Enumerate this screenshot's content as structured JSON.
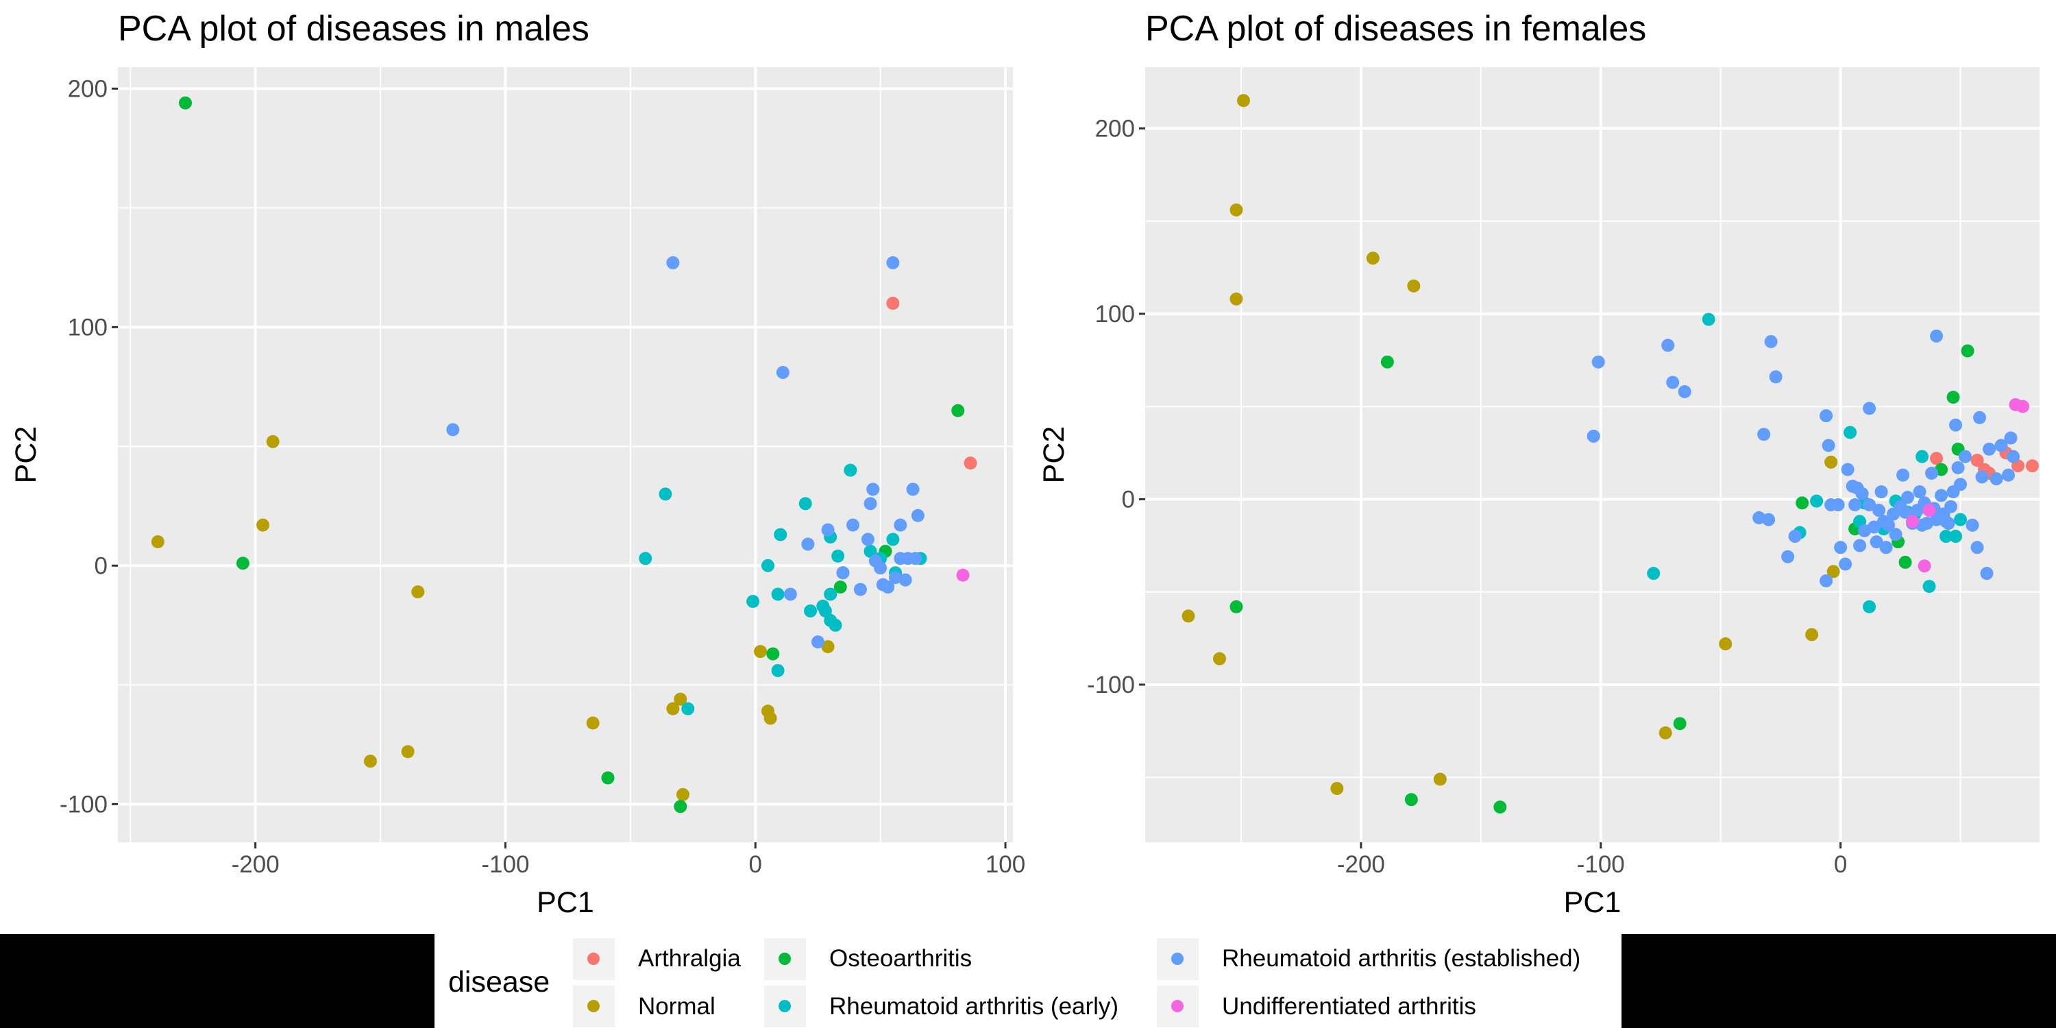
{
  "legend": {
    "title": "disease",
    "entries": [
      {
        "label": "Arthralgia",
        "color": "#F8766D"
      },
      {
        "label": "Normal",
        "color": "#B79F00"
      },
      {
        "label": "Osteoarthritis",
        "color": "#00BA38"
      },
      {
        "label": "Rheumatoid arthritis (early)",
        "color": "#00BFC4"
      },
      {
        "label": "Rheumatoid arthritis (established)",
        "color": "#619CFF"
      },
      {
        "label": "Undifferentiated arthritis",
        "color": "#F564E3"
      }
    ]
  },
  "chart_data": [
    {
      "type": "scatter",
      "title": "PCA plot of diseases in males",
      "xlabel": "PC1",
      "ylabel": "PC2",
      "xlim": [
        -255,
        103
      ],
      "ylim": [
        -116,
        209
      ],
      "xticks": [
        -200,
        -100,
        0,
        100
      ],
      "yticks": [
        -100,
        0,
        100,
        200
      ],
      "grid": true,
      "series": [
        {
          "name": "Arthralgia",
          "points": [
            [
              55,
              110
            ],
            [
              86,
              43
            ]
          ]
        },
        {
          "name": "Normal",
          "points": [
            [
              -239,
              10
            ],
            [
              -193,
              52
            ],
            [
              -197,
              17
            ],
            [
              -135,
              -11
            ],
            [
              -154,
              -82
            ],
            [
              -139,
              -78
            ],
            [
              -65,
              -66
            ],
            [
              -33,
              -60
            ],
            [
              -30,
              -56
            ],
            [
              -29,
              -96
            ],
            [
              2,
              -36
            ],
            [
              5,
              -61
            ],
            [
              6,
              -64
            ],
            [
              29,
              -34
            ]
          ]
        },
        {
          "name": "Osteoarthritis",
          "points": [
            [
              -228,
              194
            ],
            [
              -205,
              1
            ],
            [
              -59,
              -89
            ],
            [
              -30,
              -101
            ],
            [
              7,
              -37
            ],
            [
              34,
              -9
            ],
            [
              52,
              6
            ],
            [
              81,
              65
            ]
          ]
        },
        {
          "name": "Rheumatoid arthritis (early)",
          "points": [
            [
              -36,
              30
            ],
            [
              -44,
              3
            ],
            [
              -27,
              -60
            ],
            [
              -1,
              -15
            ],
            [
              5,
              0
            ],
            [
              9,
              -12
            ],
            [
              9,
              -44
            ],
            [
              10,
              13
            ],
            [
              20,
              26
            ],
            [
              22,
              -19
            ],
            [
              27,
              -17
            ],
            [
              28,
              -19
            ],
            [
              30,
              12
            ],
            [
              30,
              -12
            ],
            [
              30,
              -23
            ],
            [
              32,
              -25
            ],
            [
              33,
              4
            ],
            [
              35,
              -3
            ],
            [
              38,
              40
            ],
            [
              46,
              6
            ],
            [
              50,
              3
            ],
            [
              55,
              11
            ],
            [
              56,
              -3
            ],
            [
              66,
              3
            ]
          ]
        },
        {
          "name": "Rheumatoid arthritis (established)",
          "points": [
            [
              -121,
              57
            ],
            [
              -33,
              127
            ],
            [
              11,
              81
            ],
            [
              55,
              127
            ],
            [
              14,
              -12
            ],
            [
              21,
              9
            ],
            [
              25,
              -32
            ],
            [
              29,
              15
            ],
            [
              35,
              -3
            ],
            [
              39,
              17
            ],
            [
              42,
              -10
            ],
            [
              45,
              11
            ],
            [
              46,
              26
            ],
            [
              47,
              32
            ],
            [
              48,
              2
            ],
            [
              50,
              -1
            ],
            [
              51,
              -8
            ],
            [
              53,
              -9
            ],
            [
              56,
              -5
            ],
            [
              58,
              17
            ],
            [
              58,
              3
            ],
            [
              60,
              -6
            ],
            [
              61,
              3
            ],
            [
              63,
              32
            ],
            [
              64,
              3
            ],
            [
              65,
              21
            ]
          ]
        },
        {
          "name": "Undifferentiated arthritis",
          "points": [
            [
              83,
              -4
            ]
          ]
        }
      ]
    },
    {
      "type": "scatter",
      "title": "PCA plot of diseases in females",
      "xlabel": "PC1",
      "ylabel": "PC2",
      "xlim": [
        -290,
        83
      ],
      "ylim": [
        -185,
        233
      ],
      "xticks": [
        -200,
        -100,
        0
      ],
      "yticks": [
        -100,
        0,
        100,
        200
      ],
      "grid": true,
      "series": [
        {
          "name": "Arthralgia",
          "points": [
            [
              40,
              22
            ],
            [
              57,
              21
            ],
            [
              62,
              14
            ],
            [
              69,
              25
            ],
            [
              74,
              18
            ],
            [
              80,
              18
            ],
            [
              60,
              16
            ]
          ]
        },
        {
          "name": "Normal",
          "points": [
            [
              -249,
              215
            ],
            [
              -252,
              156
            ],
            [
              -252,
              108
            ],
            [
              -195,
              130
            ],
            [
              -178,
              115
            ],
            [
              -272,
              -63
            ],
            [
              -259,
              -86
            ],
            [
              -210,
              -156
            ],
            [
              -167,
              -151
            ],
            [
              -73,
              -126
            ],
            [
              -48,
              -78
            ],
            [
              -12,
              -73
            ],
            [
              -3,
              -39
            ],
            [
              -4,
              20
            ]
          ]
        },
        {
          "name": "Osteoarthritis",
          "points": [
            [
              -189,
              74
            ],
            [
              -252,
              -58
            ],
            [
              -179,
              -162
            ],
            [
              -67,
              -121
            ],
            [
              -142,
              -166
            ],
            [
              53,
              80
            ],
            [
              47,
              55
            ],
            [
              49,
              27
            ],
            [
              42,
              16
            ],
            [
              27,
              -34
            ],
            [
              24,
              -23
            ],
            [
              -16,
              -2
            ],
            [
              6,
              -16
            ]
          ]
        },
        {
          "name": "Rheumatoid arthritis (early)",
          "points": [
            [
              -55,
              97
            ],
            [
              -78,
              -40
            ],
            [
              -17,
              -18
            ],
            [
              -10,
              -1
            ],
            [
              4,
              36
            ],
            [
              8,
              -12
            ],
            [
              10,
              -2
            ],
            [
              12,
              -58
            ],
            [
              18,
              -16
            ],
            [
              23,
              -1
            ],
            [
              28,
              -7
            ],
            [
              31,
              -8
            ],
            [
              34,
              23
            ],
            [
              37,
              -47
            ],
            [
              40,
              -11
            ],
            [
              44,
              -20
            ],
            [
              48,
              -20
            ],
            [
              50,
              -11
            ]
          ]
        },
        {
          "name": "Rheumatoid arthritis (established)",
          "points": [
            [
              -103,
              34
            ],
            [
              -101,
              74
            ],
            [
              -72,
              83
            ],
            [
              -70,
              63
            ],
            [
              -65,
              58
            ],
            [
              -34,
              -10
            ],
            [
              -30,
              -11
            ],
            [
              -27,
              66
            ],
            [
              -29,
              85
            ],
            [
              -32,
              35
            ],
            [
              -22,
              -31
            ],
            [
              -19,
              -20
            ],
            [
              -6,
              45
            ],
            [
              -5,
              29
            ],
            [
              -6,
              -44
            ],
            [
              -4,
              -3
            ],
            [
              -1,
              -3
            ],
            [
              0,
              -26
            ],
            [
              2,
              -35
            ],
            [
              3,
              16
            ],
            [
              5,
              7
            ],
            [
              6,
              -3
            ],
            [
              7,
              6
            ],
            [
              8,
              -25
            ],
            [
              9,
              3
            ],
            [
              10,
              -17
            ],
            [
              12,
              49
            ],
            [
              12,
              -3
            ],
            [
              14,
              -15
            ],
            [
              15,
              -23
            ],
            [
              16,
              -6
            ],
            [
              17,
              4
            ],
            [
              18,
              -12
            ],
            [
              19,
              -26
            ],
            [
              20,
              -14
            ],
            [
              22,
              -8
            ],
            [
              23,
              -19
            ],
            [
              25,
              -4
            ],
            [
              26,
              13
            ],
            [
              27,
              -7
            ],
            [
              28,
              1
            ],
            [
              30,
              -13
            ],
            [
              32,
              -6
            ],
            [
              33,
              4
            ],
            [
              34,
              -14
            ],
            [
              35,
              -2
            ],
            [
              36,
              -13
            ],
            [
              38,
              14
            ],
            [
              39,
              -5
            ],
            [
              40,
              88
            ],
            [
              40,
              -11
            ],
            [
              41,
              -8
            ],
            [
              42,
              2
            ],
            [
              43,
              -8
            ],
            [
              44,
              -12
            ],
            [
              45,
              -13
            ],
            [
              46,
              -4
            ],
            [
              47,
              4
            ],
            [
              48,
              40
            ],
            [
              49,
              17
            ],
            [
              50,
              8
            ],
            [
              52,
              23
            ],
            [
              55,
              -14
            ],
            [
              57,
              -26
            ],
            [
              58,
              44
            ],
            [
              59,
              12
            ],
            [
              61,
              -40
            ],
            [
              62,
              27
            ],
            [
              65,
              11
            ],
            [
              67,
              29
            ],
            [
              70,
              13
            ],
            [
              71,
              33
            ],
            [
              72,
              23
            ]
          ]
        },
        {
          "name": "Undifferentiated arthritis",
          "points": [
            [
              30,
              -12
            ],
            [
              35,
              -36
            ],
            [
              37,
              -6
            ],
            [
              73,
              51
            ],
            [
              76,
              50
            ]
          ]
        }
      ]
    }
  ]
}
